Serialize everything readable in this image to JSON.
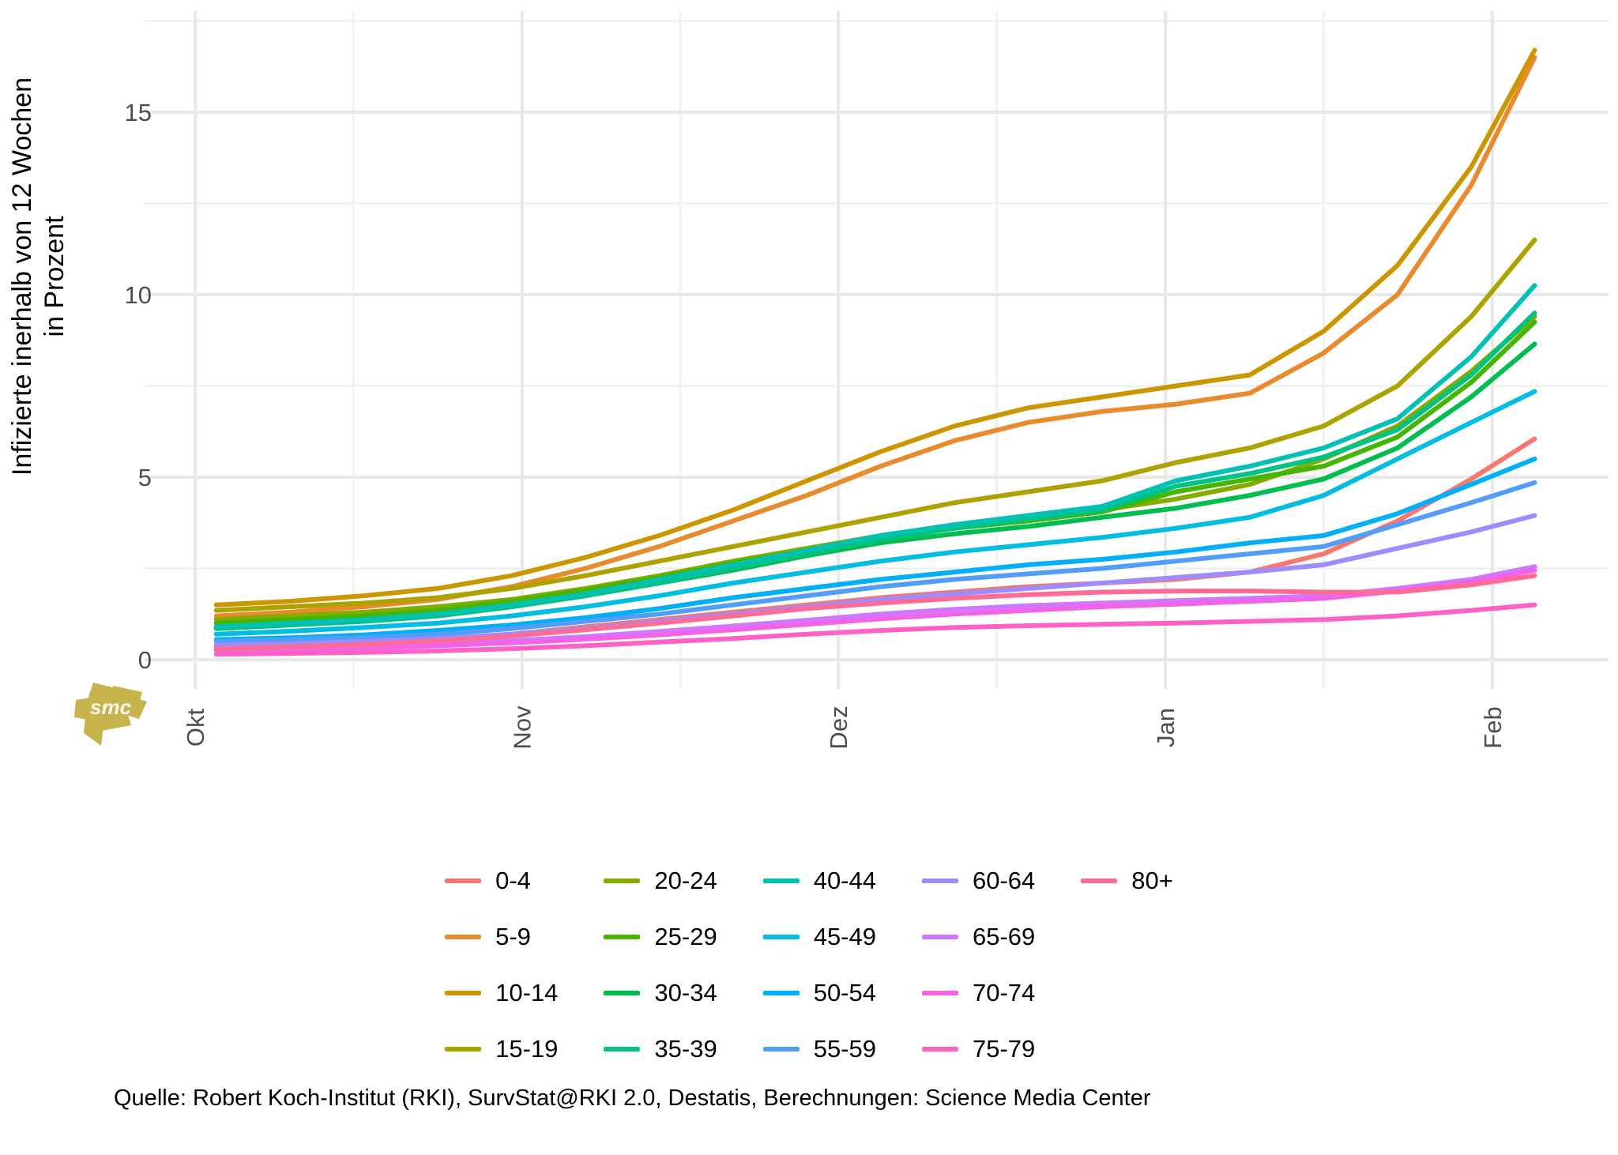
{
  "figure": {
    "y_axis_title_line1": "Infizierte inerhalb von 12 Wochen",
    "y_axis_title_line2": "in Prozent",
    "caption": "Quelle: Robert Koch-Institut (RKI), SurvStat@RKI 2.0, Destatis, Berechnungen: Science Media Center",
    "logo_text": "smc",
    "logo_color": "#C8B44C"
  },
  "chart_data": {
    "type": "line",
    "title": "",
    "xlabel": "",
    "ylabel": "Infizierte inerhalb von 12 Wochen in Prozent",
    "grid": true,
    "legend_position": "bottom",
    "x_tick_labels": [
      "Okt",
      "Nov",
      "Dez",
      "Jan",
      "Feb"
    ],
    "x_tick_days": [
      0,
      31,
      61,
      92,
      123
    ],
    "x_minor_days": [
      15,
      46,
      76,
      107
    ],
    "y_ticks": [
      0,
      5,
      10,
      15
    ],
    "y_minor_ticks": [
      2.5,
      7.5,
      12.5,
      17.5
    ],
    "ylim": [
      -0.8,
      17.75
    ],
    "x_days_since_oct1": [
      2,
      9,
      16,
      23,
      30,
      37,
      44,
      51,
      58,
      65,
      72,
      79,
      86,
      93,
      100,
      107,
      114,
      121,
      127
    ],
    "values_note": "percent infected within 12 weeks, values estimated from plot",
    "series": [
      {
        "name": "0-4",
        "color": "#F8766D",
        "values": [
          0.35,
          0.4,
          0.45,
          0.55,
          0.7,
          0.9,
          1.1,
          1.3,
          1.5,
          1.7,
          1.85,
          2.0,
          2.1,
          2.2,
          2.4,
          2.9,
          3.8,
          4.95,
          6.05
        ]
      },
      {
        "name": "5-9",
        "color": "#E98A2C",
        "values": [
          1.2,
          1.3,
          1.45,
          1.65,
          2.0,
          2.5,
          3.1,
          3.8,
          4.5,
          5.3,
          6.0,
          6.5,
          6.8,
          7.0,
          7.3,
          8.4,
          10.0,
          13.0,
          16.5
        ]
      },
      {
        "name": "10-14",
        "color": "#CC9600",
        "values": [
          1.5,
          1.6,
          1.75,
          1.95,
          2.3,
          2.8,
          3.4,
          4.1,
          4.9,
          5.7,
          6.4,
          6.9,
          7.2,
          7.5,
          7.8,
          9.0,
          10.8,
          13.5,
          16.7
        ]
      },
      {
        "name": "15-19",
        "color": "#ACA200",
        "values": [
          1.35,
          1.45,
          1.55,
          1.7,
          1.95,
          2.3,
          2.7,
          3.1,
          3.5,
          3.9,
          4.3,
          4.6,
          4.9,
          5.4,
          5.8,
          6.4,
          7.5,
          9.4,
          11.5
        ]
      },
      {
        "name": "20-24",
        "color": "#84AC00",
        "values": [
          1.1,
          1.2,
          1.3,
          1.45,
          1.65,
          1.95,
          2.3,
          2.7,
          3.05,
          3.4,
          3.65,
          3.85,
          4.1,
          4.4,
          4.8,
          5.5,
          6.4,
          7.9,
          9.4
        ]
      },
      {
        "name": "25-29",
        "color": "#45B500",
        "values": [
          1.0,
          1.1,
          1.2,
          1.35,
          1.6,
          1.9,
          2.25,
          2.65,
          3.0,
          3.35,
          3.6,
          3.8,
          4.05,
          4.6,
          4.95,
          5.3,
          6.1,
          7.6,
          9.25
        ]
      },
      {
        "name": "30-34",
        "color": "#00BD4F",
        "values": [
          0.85,
          0.95,
          1.05,
          1.2,
          1.45,
          1.75,
          2.1,
          2.45,
          2.85,
          3.2,
          3.45,
          3.65,
          3.9,
          4.15,
          4.5,
          4.95,
          5.8,
          7.2,
          8.65
        ]
      },
      {
        "name": "35-39",
        "color": "#00C282",
        "values": [
          0.85,
          0.95,
          1.05,
          1.2,
          1.45,
          1.75,
          2.1,
          2.5,
          2.9,
          3.3,
          3.6,
          3.85,
          4.1,
          4.75,
          5.1,
          5.55,
          6.3,
          7.8,
          9.5
        ]
      },
      {
        "name": "40-44",
        "color": "#00C1B2",
        "values": [
          0.9,
          1.0,
          1.1,
          1.25,
          1.5,
          1.8,
          2.2,
          2.6,
          3.0,
          3.4,
          3.7,
          3.95,
          4.2,
          4.9,
          5.3,
          5.8,
          6.6,
          8.3,
          10.25
        ]
      },
      {
        "name": "45-49",
        "color": "#00BDE1",
        "values": [
          0.7,
          0.78,
          0.88,
          1.0,
          1.2,
          1.45,
          1.75,
          2.1,
          2.4,
          2.7,
          2.95,
          3.15,
          3.35,
          3.6,
          3.9,
          4.5,
          5.5,
          6.5,
          7.35
        ]
      },
      {
        "name": "50-54",
        "color": "#00AFF8",
        "values": [
          0.55,
          0.6,
          0.68,
          0.8,
          0.95,
          1.15,
          1.4,
          1.7,
          1.95,
          2.2,
          2.4,
          2.6,
          2.75,
          2.95,
          3.2,
          3.4,
          4.0,
          4.8,
          5.5
        ]
      },
      {
        "name": "55-59",
        "color": "#519DF8",
        "values": [
          0.5,
          0.55,
          0.6,
          0.7,
          0.85,
          1.05,
          1.25,
          1.5,
          1.75,
          2.0,
          2.2,
          2.35,
          2.5,
          2.7,
          2.9,
          3.1,
          3.7,
          4.3,
          4.85
        ]
      },
      {
        "name": "60-64",
        "color": "#9E8CFF",
        "values": [
          0.4,
          0.44,
          0.5,
          0.58,
          0.7,
          0.85,
          1.05,
          1.25,
          1.45,
          1.65,
          1.8,
          1.95,
          2.1,
          2.25,
          2.4,
          2.6,
          3.05,
          3.5,
          3.95
        ]
      },
      {
        "name": "65-69",
        "color": "#CE78FF",
        "values": [
          0.3,
          0.33,
          0.37,
          0.43,
          0.52,
          0.63,
          0.77,
          0.92,
          1.08,
          1.25,
          1.38,
          1.48,
          1.55,
          1.62,
          1.68,
          1.75,
          1.95,
          2.2,
          2.55
        ]
      },
      {
        "name": "70-74",
        "color": "#F263E6",
        "values": [
          0.25,
          0.28,
          0.32,
          0.38,
          0.46,
          0.56,
          0.68,
          0.82,
          0.97,
          1.12,
          1.25,
          1.35,
          1.45,
          1.52,
          1.6,
          1.68,
          1.88,
          2.12,
          2.45
        ]
      },
      {
        "name": "75-79",
        "color": "#FF61C7",
        "values": [
          0.15,
          0.17,
          0.2,
          0.24,
          0.3,
          0.38,
          0.48,
          0.58,
          0.7,
          0.8,
          0.88,
          0.93,
          0.97,
          1.0,
          1.05,
          1.1,
          1.2,
          1.35,
          1.5
        ]
      },
      {
        "name": "80+",
        "color": "#FF6B94",
        "values": [
          0.3,
          0.35,
          0.42,
          0.52,
          0.65,
          0.82,
          1.0,
          1.2,
          1.4,
          1.55,
          1.68,
          1.78,
          1.85,
          1.88,
          1.88,
          1.85,
          1.85,
          2.05,
          2.3
        ]
      }
    ],
    "legend_columns": [
      [
        "0-4",
        "5-9",
        "10-14",
        "15-19"
      ],
      [
        "20-24",
        "25-29",
        "30-34",
        "35-39"
      ],
      [
        "40-44",
        "45-49",
        "50-54",
        "55-59"
      ],
      [
        "60-64",
        "65-69",
        "70-74",
        "75-79"
      ],
      [
        "80+"
      ]
    ],
    "style": {
      "grid_major_color": "#E8E8E8",
      "grid_minor_color": "#F2F2F2",
      "tick_label_color": "#4D4D4D",
      "line_width": 6
    }
  }
}
